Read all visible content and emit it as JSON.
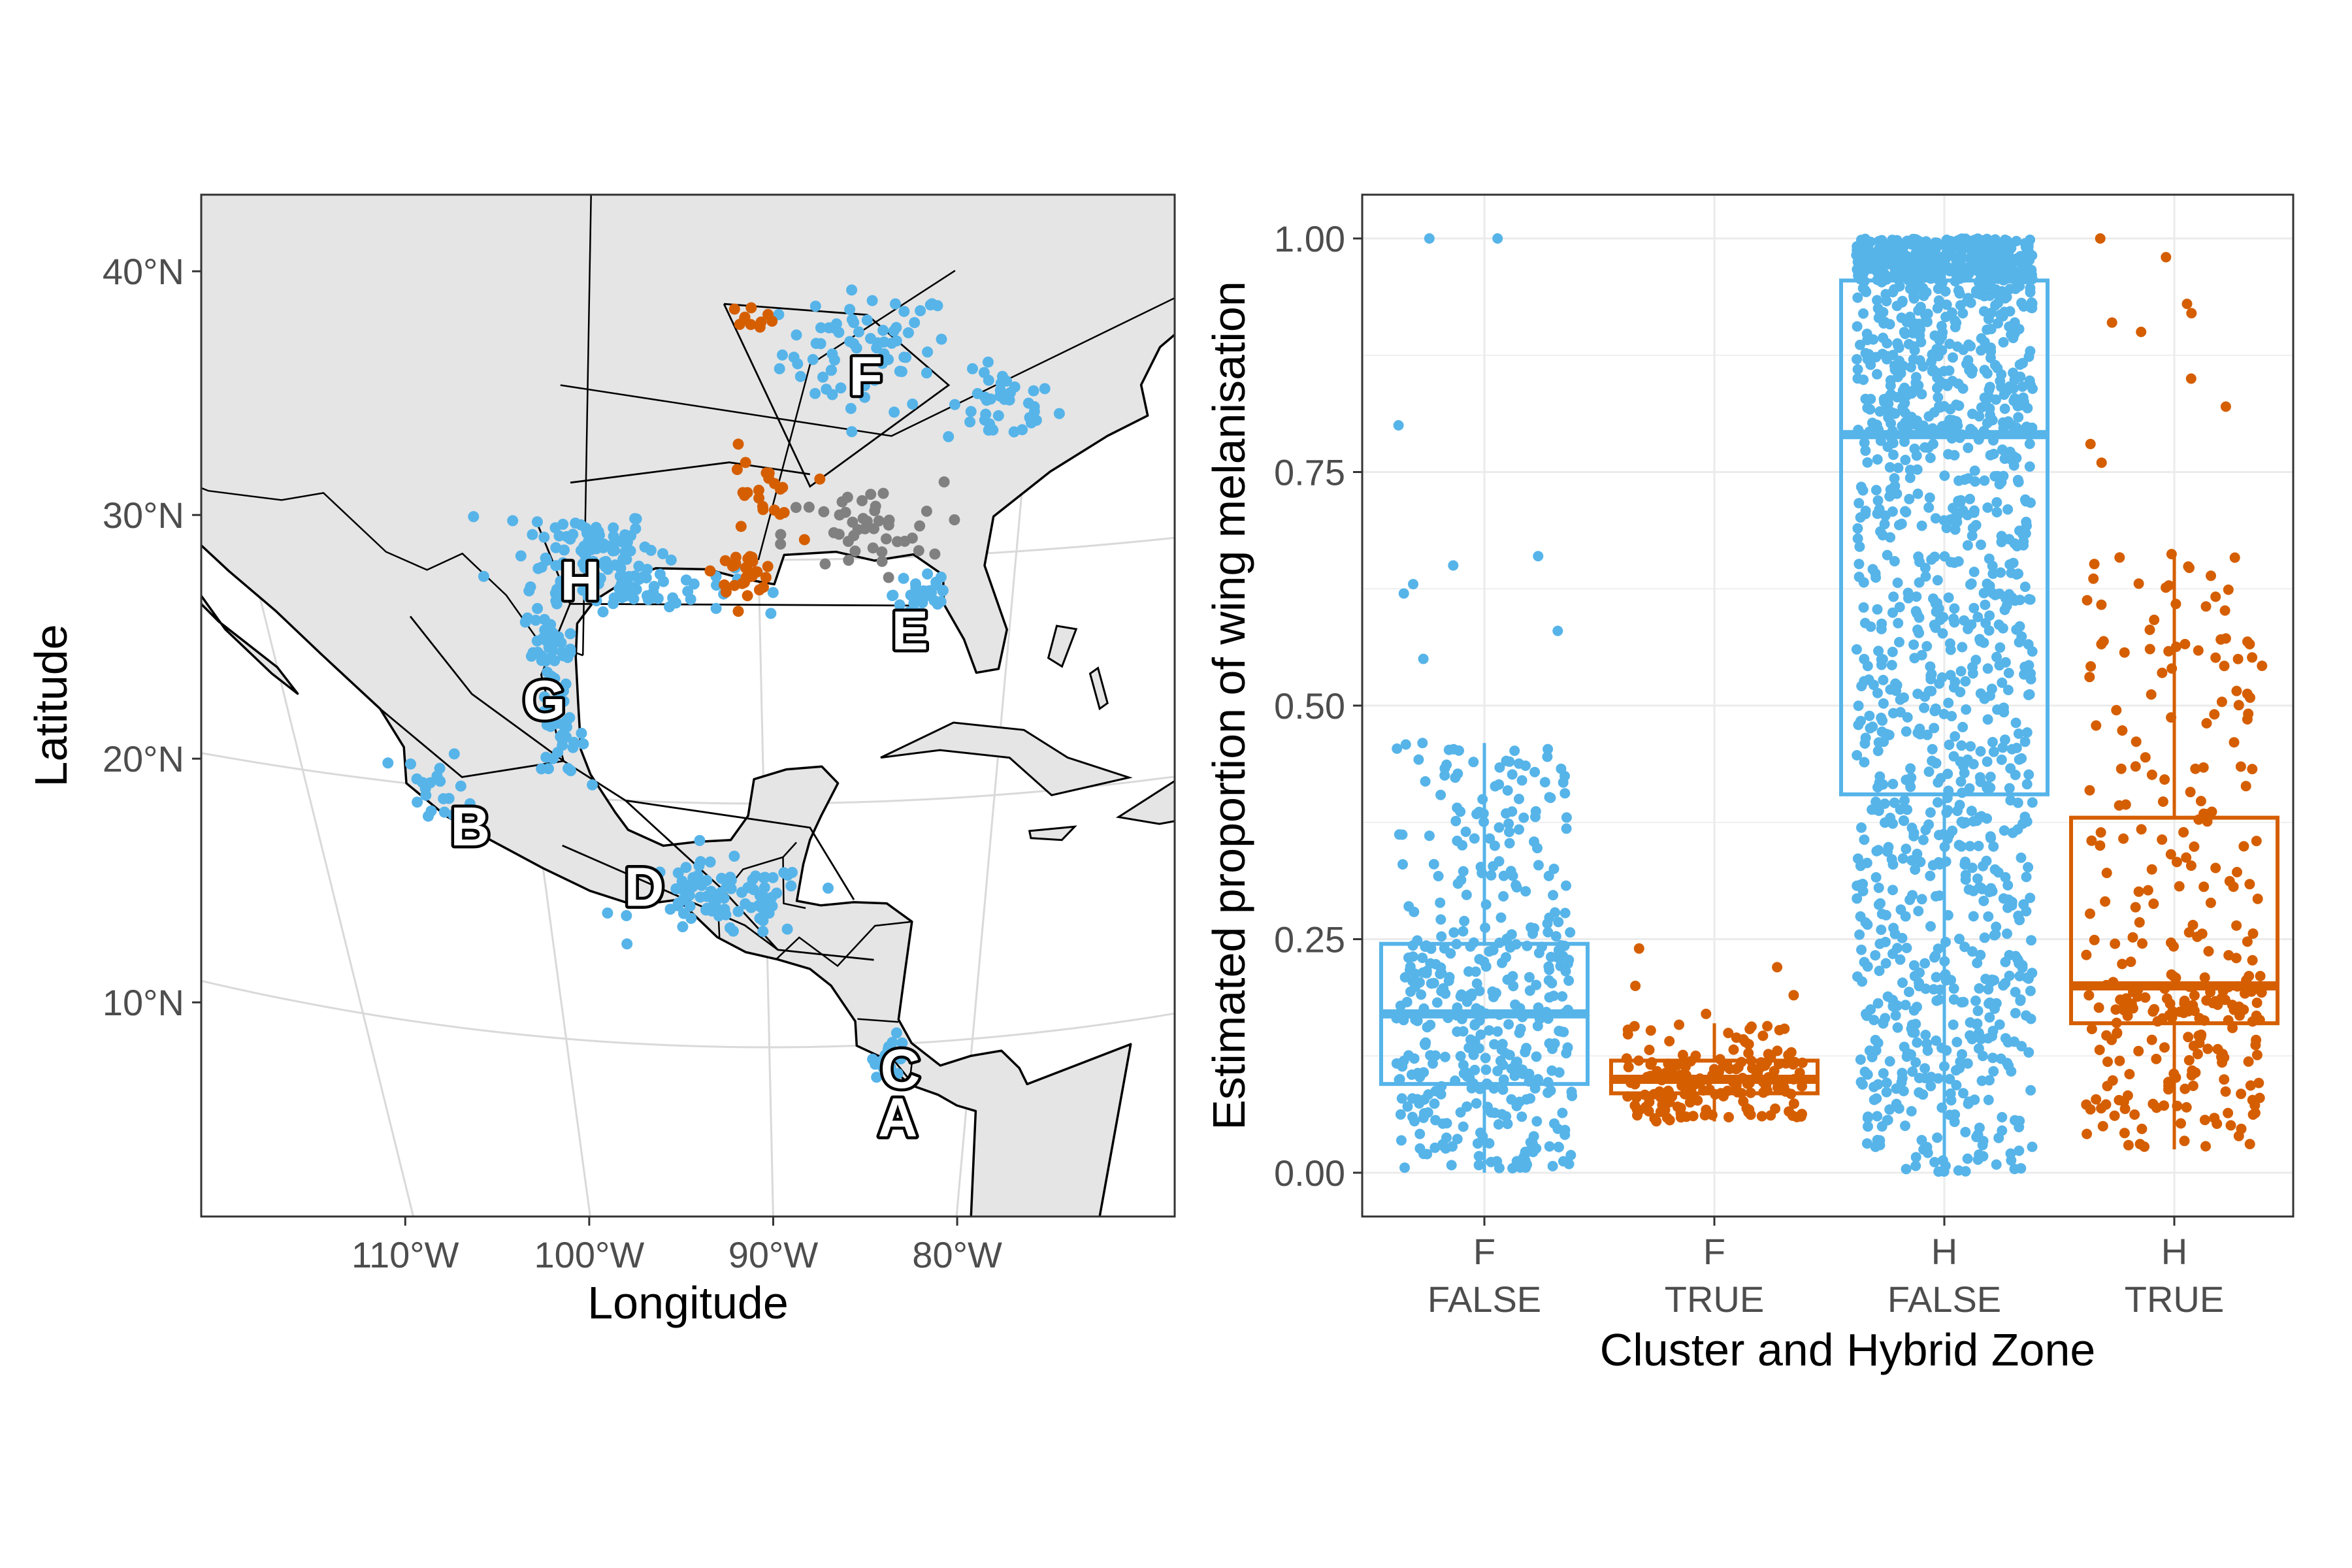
{
  "chart_data": [
    {
      "type": "scatter",
      "subtype": "map",
      "xlabel": "Longitude",
      "ylabel": "Latitude",
      "x_ticks": [
        "110°W",
        "100°W",
        "90°W",
        "80°W"
      ],
      "y_ticks": [
        "10°N",
        "20°N",
        "30°N",
        "40°N"
      ],
      "xlim": [
        -113,
        -73
      ],
      "ylim": [
        3,
        45
      ],
      "colors": {
        "not_hybrid": "#56B4E9",
        "hybrid": "#D55E00",
        "other": "#808080",
        "land": "#e5e5e5",
        "border": "#000000"
      },
      "zone_labels": [
        {
          "label": "A",
          "lon": -83.5,
          "lat": 7.0
        },
        {
          "label": "B",
          "lon": -103.0,
          "lat": 18.5
        },
        {
          "label": "C",
          "lon": -83.5,
          "lat": 9.0
        },
        {
          "label": "D",
          "lon": -95.5,
          "lat": 16.5
        },
        {
          "label": "E",
          "lon": -84.0,
          "lat": 27.0
        },
        {
          "label": "F",
          "lon": -86.0,
          "lat": 37.5
        },
        {
          "label": "G",
          "lon": -99.0,
          "lat": 24.0
        },
        {
          "label": "H",
          "lon": -97.0,
          "lat": 29.0
        }
      ],
      "point_clusters": [
        {
          "group": "not_hybrid",
          "lon": -86.0,
          "lat": 38.5,
          "spread": [
            3.0,
            2.5
          ],
          "n": 70
        },
        {
          "group": "not_hybrid",
          "lon": -81.0,
          "lat": 36.0,
          "spread": [
            2.0,
            1.5
          ],
          "n": 40
        },
        {
          "group": "not_hybrid",
          "lon": -96.5,
          "lat": 30.5,
          "spread": [
            2.5,
            1.5
          ],
          "n": 80
        },
        {
          "group": "not_hybrid",
          "lon": -95.0,
          "lat": 28.8,
          "spread": [
            4.0,
            1.0
          ],
          "n": 70
        },
        {
          "group": "not_hybrid",
          "lon": -98.5,
          "lat": 26.0,
          "spread": [
            1.0,
            1.8
          ],
          "n": 45
        },
        {
          "group": "not_hybrid",
          "lon": -98.5,
          "lat": 22.5,
          "spread": [
            1.0,
            1.5
          ],
          "n": 30
        },
        {
          "group": "not_hybrid",
          "lon": -83.5,
          "lat": 28.5,
          "spread": [
            1.2,
            1.5
          ],
          "n": 30
        },
        {
          "group": "not_hybrid",
          "lon": -92.0,
          "lat": 16.0,
          "spread": [
            4.0,
            1.5
          ],
          "n": 90
        },
        {
          "group": "not_hybrid",
          "lon": -104.0,
          "lat": 20.0,
          "spread": [
            1.5,
            1.5
          ],
          "n": 20
        },
        {
          "group": "not_hybrid",
          "lon": -84.0,
          "lat": 9.5,
          "spread": [
            0.8,
            0.8
          ],
          "n": 25
        },
        {
          "group": "hybrid",
          "lon": -90.5,
          "lat": 29.5,
          "spread": [
            1.2,
            0.8
          ],
          "n": 30
        },
        {
          "group": "hybrid",
          "lon": -90.0,
          "lat": 32.5,
          "spread": [
            1.5,
            2.0
          ],
          "n": 22
        },
        {
          "group": "hybrid",
          "lon": -90.0,
          "lat": 40.0,
          "spread": [
            0.8,
            0.4
          ],
          "n": 10
        },
        {
          "group": "other",
          "lon": -86.0,
          "lat": 31.0,
          "spread": [
            3.0,
            2.0
          ],
          "n": 45
        }
      ]
    },
    {
      "type": "box",
      "xlabel": "Cluster and Hybrid Zone",
      "ylabel": "Estimated proportion of wing melanisation",
      "ylim": [
        0,
        1
      ],
      "y_ticks": [
        "0.00",
        "0.25",
        "0.50",
        "0.75",
        "1.00"
      ],
      "categories": [
        {
          "cluster": "F",
          "hybrid_zone": "FALSE",
          "color": "#56B4E9",
          "q1": 0.095,
          "median": 0.17,
          "q3": 0.245,
          "whisker_low": 0.0,
          "whisker_high": 0.46,
          "n_points": 420,
          "outliers": [
            0.55,
            0.58,
            0.62,
            0.63,
            0.65,
            0.66,
            0.8,
            1.0,
            1.0
          ]
        },
        {
          "cluster": "F",
          "hybrid_zone": "TRUE",
          "color": "#D55E00",
          "q1": 0.085,
          "median": 0.1,
          "q3": 0.12,
          "whisker_low": 0.055,
          "whisker_high": 0.16,
          "n_points": 170,
          "outliers": [
            0.17,
            0.19,
            0.2,
            0.22,
            0.24
          ]
        },
        {
          "cluster": "H",
          "hybrid_zone": "FALSE",
          "color": "#56B4E9",
          "q1": 0.405,
          "median": 0.79,
          "q3": 0.955,
          "whisker_low": 0.0,
          "whisker_high": 1.0,
          "n_points": 1500,
          "outliers": []
        },
        {
          "cluster": "H",
          "hybrid_zone": "TRUE",
          "color": "#D55E00",
          "q1": 0.16,
          "median": 0.2,
          "q3": 0.38,
          "whisker_low": 0.025,
          "whisker_high": 0.665,
          "n_points": 290,
          "outliers": [
            0.76,
            0.78,
            0.82,
            0.85,
            0.9,
            0.91,
            0.92,
            0.93,
            0.98,
            1.0
          ]
        }
      ]
    }
  ]
}
